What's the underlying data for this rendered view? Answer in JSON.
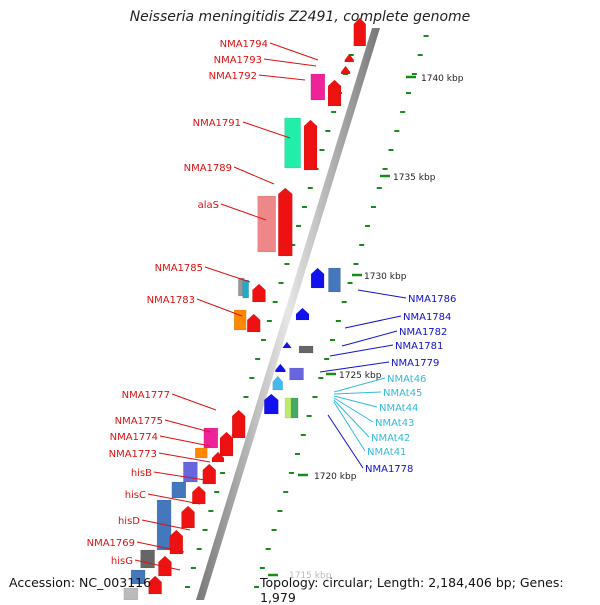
{
  "title": "Neisseria meningitidis Z2491, complete genome",
  "accession_text": "Accession: NC_003116",
  "topology_text": "Topology: circular; Length: 2,184,406 bp; Genes: 1,979",
  "scale_labels": [
    "1740 kbp",
    "1735 kbp",
    "1730 kbp",
    "1725 kbp",
    "1720 kbp",
    "1715 kbp"
  ],
  "left_labels": [
    "NMA1794",
    "NMA1793",
    "NMA1792",
    "NMA1791",
    "NMA1789",
    "alaS",
    "NMA1785",
    "NMA1783",
    "NMA1777",
    "NMA1775",
    "NMA1774",
    "NMA1773",
    "hisB",
    "hisC",
    "hisD",
    "NMA1769",
    "hisG"
  ],
  "right_labels": [
    "NMA1786",
    "NMA1784",
    "NMA1782",
    "NMA1781",
    "NMA1779",
    "NMAt46",
    "NMAt45",
    "NMAt44",
    "NMAt43",
    "NMAt42",
    "NMAt41",
    "NMA1778"
  ],
  "colors": {
    "left_label": "#dd1111",
    "right_label": "#1111cc",
    "trna_label": "#33bbdd",
    "tick": "#1a8a1a",
    "backbone": "#999999",
    "gene_red": "#ee1111",
    "gene_blue": "#1111ee"
  }
}
